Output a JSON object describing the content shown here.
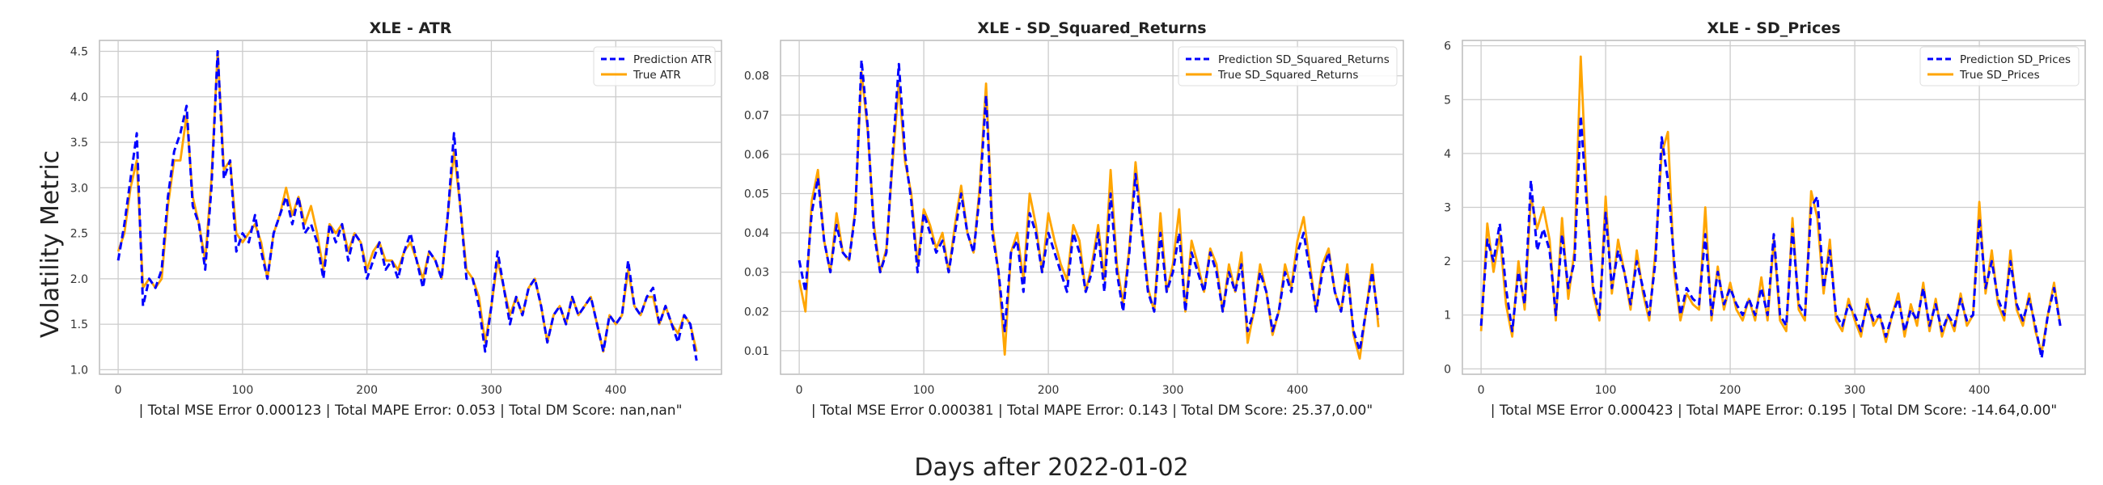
{
  "figure": {
    "ylabel": "Volatility Metric",
    "xlabel": "Days after 2022-01-02"
  },
  "colors": {
    "prediction": "#0000ff",
    "true": "#ffa500",
    "grid": "#cccccc",
    "frame": "#bbbbbb"
  },
  "chart_data": [
    {
      "type": "line",
      "title": "XLE - ATR",
      "xlabel": "| Total MSE Error 0.000123 | Total MAPE Error: 0.053 | Total DM Score: nan,nan\"",
      "ylabel": "Volatility Metric",
      "xlim": [
        -15,
        485
      ],
      "ylim": [
        0.95,
        4.62
      ],
      "xticks": [
        0,
        100,
        200,
        300,
        400
      ],
      "yticks": [
        1.0,
        1.5,
        2.0,
        2.5,
        3.0,
        3.5,
        4.0,
        4.5
      ],
      "ytick_labels": [
        "1.0",
        "1.5",
        "2.0",
        "2.5",
        "3.0",
        "3.5",
        "4.0",
        "4.5"
      ],
      "legend_position": "top-right",
      "grid": true,
      "x": [
        0,
        5,
        10,
        15,
        20,
        25,
        30,
        35,
        40,
        45,
        50,
        55,
        60,
        65,
        70,
        75,
        80,
        85,
        90,
        95,
        100,
        105,
        110,
        115,
        120,
        125,
        130,
        135,
        140,
        145,
        150,
        155,
        160,
        165,
        170,
        175,
        180,
        185,
        190,
        195,
        200,
        205,
        210,
        215,
        220,
        225,
        230,
        235,
        240,
        245,
        250,
        255,
        260,
        265,
        270,
        275,
        280,
        285,
        290,
        295,
        300,
        305,
        310,
        315,
        320,
        325,
        330,
        335,
        340,
        345,
        350,
        355,
        360,
        365,
        370,
        375,
        380,
        385,
        390,
        395,
        400,
        405,
        410,
        415,
        420,
        425,
        430,
        435,
        440,
        445,
        450,
        455,
        460,
        465
      ],
      "series": [
        {
          "name": "Prediction ATR",
          "style": "dashed",
          "values": [
            2.2,
            2.6,
            3.1,
            3.6,
            1.7,
            2.0,
            1.9,
            2.1,
            2.9,
            3.4,
            3.6,
            3.9,
            2.8,
            2.6,
            2.1,
            3.0,
            4.5,
            3.1,
            3.3,
            2.3,
            2.5,
            2.4,
            2.7,
            2.3,
            2.0,
            2.5,
            2.7,
            2.9,
            2.6,
            2.9,
            2.5,
            2.6,
            2.4,
            2.0,
            2.6,
            2.4,
            2.6,
            2.2,
            2.5,
            2.4,
            2.0,
            2.2,
            2.4,
            2.1,
            2.2,
            2.0,
            2.3,
            2.5,
            2.2,
            1.9,
            2.3,
            2.2,
            2.0,
            2.7,
            3.6,
            2.8,
            2.0,
            2.0,
            1.7,
            1.2,
            1.7,
            2.3,
            1.9,
            1.5,
            1.8,
            1.6,
            1.9,
            2.0,
            1.7,
            1.3,
            1.6,
            1.7,
            1.5,
            1.8,
            1.6,
            1.7,
            1.8,
            1.5,
            1.2,
            1.6,
            1.5,
            1.6,
            2.2,
            1.7,
            1.6,
            1.8,
            1.9,
            1.5,
            1.7,
            1.5,
            1.3,
            1.6,
            1.5,
            1.1
          ]
        },
        {
          "name": "True ATR",
          "style": "solid",
          "values": [
            2.3,
            2.5,
            3.0,
            3.3,
            1.9,
            2.0,
            1.9,
            2.0,
            2.8,
            3.3,
            3.3,
            3.8,
            2.9,
            2.6,
            2.2,
            3.1,
            4.5,
            3.2,
            3.3,
            2.5,
            2.4,
            2.5,
            2.6,
            2.4,
            2.0,
            2.5,
            2.7,
            3.0,
            2.7,
            2.9,
            2.6,
            2.8,
            2.5,
            2.1,
            2.6,
            2.5,
            2.6,
            2.3,
            2.5,
            2.4,
            2.1,
            2.3,
            2.4,
            2.2,
            2.2,
            2.1,
            2.3,
            2.4,
            2.2,
            2.0,
            2.3,
            2.2,
            2.0,
            2.7,
            3.4,
            2.8,
            2.1,
            2.0,
            1.8,
            1.3,
            1.7,
            2.2,
            1.9,
            1.6,
            1.8,
            1.6,
            1.9,
            2.0,
            1.7,
            1.3,
            1.6,
            1.7,
            1.5,
            1.8,
            1.6,
            1.7,
            1.8,
            1.5,
            1.2,
            1.6,
            1.5,
            1.6,
            2.1,
            1.7,
            1.6,
            1.8,
            1.8,
            1.5,
            1.7,
            1.5,
            1.4,
            1.6,
            1.5,
            1.2
          ]
        }
      ]
    },
    {
      "type": "line",
      "title": "XLE - SD_Squared_Returns",
      "xlabel": "| Total MSE Error 0.000381 | Total MAPE Error: 0.143 | Total DM Score: 25.37,0.00\"",
      "xlim": [
        -15,
        485
      ],
      "ylim": [
        0.004,
        0.089
      ],
      "xticks": [
        0,
        100,
        200,
        300,
        400
      ],
      "yticks": [
        0.01,
        0.02,
        0.03,
        0.04,
        0.05,
        0.06,
        0.07,
        0.08
      ],
      "ytick_labels": [
        "0.01",
        "0.02",
        "0.03",
        "0.04",
        "0.05",
        "0.06",
        "0.07",
        "0.08"
      ],
      "legend_position": "top-right",
      "grid": true,
      "x": [
        0,
        5,
        10,
        15,
        20,
        25,
        30,
        35,
        40,
        45,
        50,
        55,
        60,
        65,
        70,
        75,
        80,
        85,
        90,
        95,
        100,
        105,
        110,
        115,
        120,
        125,
        130,
        135,
        140,
        145,
        150,
        155,
        160,
        165,
        170,
        175,
        180,
        185,
        190,
        195,
        200,
        205,
        210,
        215,
        220,
        225,
        230,
        235,
        240,
        245,
        250,
        255,
        260,
        265,
        270,
        275,
        280,
        285,
        290,
        295,
        300,
        305,
        310,
        315,
        320,
        325,
        330,
        335,
        340,
        345,
        350,
        355,
        360,
        365,
        370,
        375,
        380,
        385,
        390,
        395,
        400,
        405,
        410,
        415,
        420,
        425,
        430,
        435,
        440,
        445,
        450,
        455,
        460,
        465
      ],
      "series": [
        {
          "name": "Prediction SD_Squared_Returns",
          "style": "dashed",
          "values": [
            0.033,
            0.025,
            0.045,
            0.054,
            0.038,
            0.03,
            0.042,
            0.035,
            0.033,
            0.045,
            0.084,
            0.067,
            0.04,
            0.03,
            0.035,
            0.06,
            0.083,
            0.06,
            0.048,
            0.03,
            0.045,
            0.04,
            0.035,
            0.038,
            0.03,
            0.04,
            0.05,
            0.04,
            0.035,
            0.05,
            0.075,
            0.04,
            0.03,
            0.015,
            0.035,
            0.038,
            0.025,
            0.045,
            0.04,
            0.03,
            0.04,
            0.035,
            0.03,
            0.025,
            0.04,
            0.035,
            0.025,
            0.03,
            0.04,
            0.025,
            0.05,
            0.03,
            0.02,
            0.035,
            0.055,
            0.04,
            0.025,
            0.02,
            0.04,
            0.025,
            0.03,
            0.04,
            0.02,
            0.035,
            0.03,
            0.025,
            0.035,
            0.03,
            0.02,
            0.03,
            0.025,
            0.032,
            0.015,
            0.02,
            0.03,
            0.025,
            0.015,
            0.02,
            0.03,
            0.025,
            0.035,
            0.04,
            0.03,
            0.02,
            0.03,
            0.035,
            0.025,
            0.02,
            0.03,
            0.015,
            0.01,
            0.02,
            0.03,
            0.018
          ]
        },
        {
          "name": "True SD_Squared_Returns",
          "style": "solid",
          "values": [
            0.028,
            0.02,
            0.048,
            0.056,
            0.038,
            0.03,
            0.045,
            0.035,
            0.033,
            0.046,
            0.081,
            0.066,
            0.042,
            0.03,
            0.036,
            0.058,
            0.078,
            0.058,
            0.05,
            0.032,
            0.046,
            0.042,
            0.036,
            0.04,
            0.03,
            0.042,
            0.052,
            0.04,
            0.035,
            0.052,
            0.078,
            0.042,
            0.03,
            0.009,
            0.035,
            0.04,
            0.028,
            0.05,
            0.042,
            0.03,
            0.045,
            0.038,
            0.032,
            0.028,
            0.042,
            0.038,
            0.025,
            0.032,
            0.042,
            0.028,
            0.056,
            0.032,
            0.022,
            0.036,
            0.058,
            0.042,
            0.026,
            0.02,
            0.045,
            0.025,
            0.032,
            0.046,
            0.02,
            0.038,
            0.032,
            0.025,
            0.036,
            0.032,
            0.02,
            0.032,
            0.025,
            0.035,
            0.012,
            0.02,
            0.032,
            0.025,
            0.014,
            0.02,
            0.032,
            0.026,
            0.038,
            0.044,
            0.032,
            0.02,
            0.032,
            0.036,
            0.025,
            0.02,
            0.032,
            0.014,
            0.008,
            0.02,
            0.032,
            0.016
          ]
        }
      ]
    },
    {
      "type": "line",
      "title": "XLE - SD_Prices",
      "xlabel": "| Total MSE Error 0.000423 | Total MAPE Error: 0.195 | Total DM Score: -14.64,0.00\"",
      "xlim": [
        -15,
        485
      ],
      "ylim": [
        -0.1,
        6.1
      ],
      "xticks": [
        0,
        100,
        200,
        300,
        400
      ],
      "yticks": [
        0,
        1,
        2,
        3,
        4,
        5,
        6
      ],
      "ytick_labels": [
        "0",
        "1",
        "2",
        "3",
        "4",
        "5",
        "6"
      ],
      "legend_position": "top-right",
      "grid": true,
      "x": [
        0,
        5,
        10,
        15,
        20,
        25,
        30,
        35,
        40,
        45,
        50,
        55,
        60,
        65,
        70,
        75,
        80,
        85,
        90,
        95,
        100,
        105,
        110,
        115,
        120,
        125,
        130,
        135,
        140,
        145,
        150,
        155,
        160,
        165,
        170,
        175,
        180,
        185,
        190,
        195,
        200,
        205,
        210,
        215,
        220,
        225,
        230,
        235,
        240,
        245,
        250,
        255,
        260,
        265,
        270,
        275,
        280,
        285,
        290,
        295,
        300,
        305,
        310,
        315,
        320,
        325,
        330,
        335,
        340,
        345,
        350,
        355,
        360,
        365,
        370,
        375,
        380,
        385,
        390,
        395,
        400,
        405,
        410,
        415,
        420,
        425,
        430,
        435,
        440,
        445,
        450,
        455,
        460,
        465
      ],
      "series": [
        {
          "name": "Prediction SD_Prices",
          "style": "dashed",
          "values": [
            0.8,
            2.4,
            2.0,
            2.7,
            1.5,
            0.7,
            1.8,
            1.2,
            3.5,
            2.2,
            2.6,
            2.2,
            1.0,
            2.5,
            1.5,
            2.0,
            4.7,
            3.0,
            1.5,
            1.0,
            2.9,
            1.5,
            2.2,
            1.8,
            1.2,
            2.0,
            1.5,
            1.0,
            2.0,
            4.3,
            3.5,
            2.0,
            1.0,
            1.5,
            1.3,
            1.2,
            2.5,
            1.0,
            1.8,
            1.2,
            1.5,
            1.2,
            1.0,
            1.3,
            1.0,
            1.5,
            1.0,
            2.5,
            1.0,
            0.8,
            2.6,
            1.2,
            1.0,
            3.0,
            3.2,
            1.5,
            2.2,
            1.0,
            0.8,
            1.2,
            1.0,
            0.7,
            1.2,
            0.9,
            1.0,
            0.6,
            1.0,
            1.3,
            0.7,
            1.1,
            0.9,
            1.5,
            0.8,
            1.2,
            0.7,
            1.0,
            0.8,
            1.3,
            0.9,
            1.0,
            2.8,
            1.5,
            2.0,
            1.3,
            1.0,
            2.0,
            1.2,
            0.9,
            1.3,
            0.8,
            0.2,
            1.0,
            1.5,
            0.8
          ]
        },
        {
          "name": "True SD_Prices",
          "style": "solid",
          "values": [
            0.7,
            2.7,
            1.8,
            2.5,
            1.2,
            0.6,
            2.0,
            1.1,
            3.2,
            2.6,
            3.0,
            2.4,
            0.9,
            2.8,
            1.3,
            2.2,
            5.8,
            3.2,
            1.4,
            0.9,
            3.2,
            1.4,
            2.4,
            1.8,
            1.1,
            2.2,
            1.4,
            0.9,
            2.2,
            4.0,
            4.4,
            1.8,
            0.9,
            1.4,
            1.2,
            1.1,
            3.0,
            0.9,
            1.9,
            1.1,
            1.6,
            1.1,
            0.9,
            1.3,
            0.9,
            1.7,
            0.9,
            2.4,
            0.9,
            0.7,
            2.8,
            1.1,
            0.9,
            3.3,
            2.8,
            1.4,
            2.4,
            0.9,
            0.7,
            1.3,
            0.9,
            0.6,
            1.3,
            0.8,
            1.0,
            0.5,
            1.0,
            1.4,
            0.6,
            1.2,
            0.8,
            1.6,
            0.7,
            1.3,
            0.6,
            1.0,
            0.7,
            1.4,
            0.8,
            1.0,
            3.1,
            1.4,
            2.2,
            1.2,
            0.9,
            2.2,
            1.1,
            0.8,
            1.4,
            0.7,
            0.3,
            1.0,
            1.6,
            0.8
          ]
        }
      ]
    }
  ]
}
